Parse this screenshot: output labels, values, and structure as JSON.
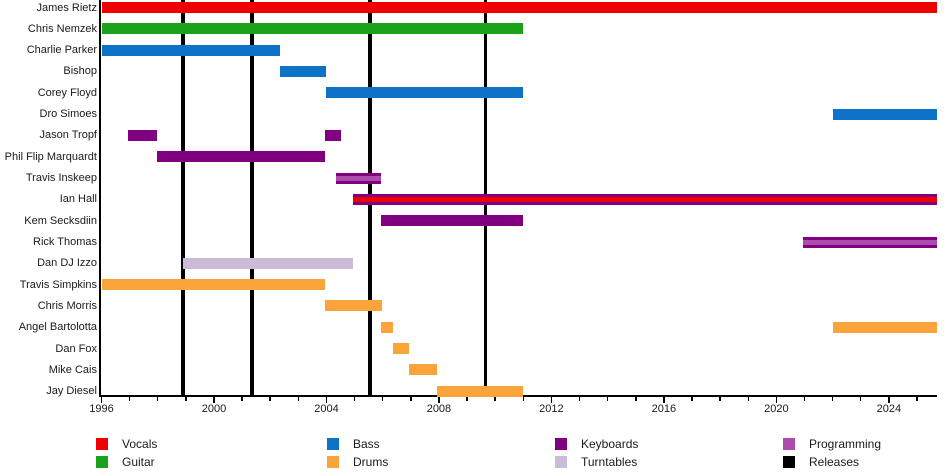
{
  "chart_data": {
    "type": "timeline",
    "title": "",
    "x_axis": {
      "start": 1996,
      "end": 2025.7,
      "major_ticks": [
        1996,
        2000,
        2004,
        2008,
        2012,
        2016,
        2020,
        2024
      ],
      "minor_tick_interval": 1,
      "grid": false
    },
    "legend_position": "bottom",
    "legend": [
      {
        "id": "vocals",
        "label": "Vocals",
        "color": "#ee0000"
      },
      {
        "id": "guitar",
        "label": "Guitar",
        "color": "#1aa31a"
      },
      {
        "id": "bass",
        "label": "Bass",
        "color": "#0d72c8"
      },
      {
        "id": "drums",
        "label": "Drums",
        "color": "#faa43a"
      },
      {
        "id": "keyboards",
        "label": "Keyboards",
        "color": "#800080"
      },
      {
        "id": "turntables",
        "label": "Turntables",
        "color": "#ccbbd6"
      },
      {
        "id": "programming",
        "label": "Programming",
        "color": "#ad4cad"
      },
      {
        "id": "releases",
        "label": "Releases",
        "color": "#000000"
      }
    ],
    "members": [
      {
        "name": "James Rietz",
        "bars": [
          {
            "start": 1996,
            "end": 2025.7,
            "role": "vocals"
          }
        ]
      },
      {
        "name": "Chris Nemzek",
        "bars": [
          {
            "start": 1996,
            "end": 2011,
            "role": "guitar"
          }
        ]
      },
      {
        "name": "Charlie Parker",
        "bars": [
          {
            "start": 1996,
            "end": 2002.35,
            "role": "bass"
          }
        ]
      },
      {
        "name": "Bishop",
        "bars": [
          {
            "start": 2002.35,
            "end": 2004,
            "role": "bass"
          }
        ]
      },
      {
        "name": "Corey Floyd",
        "bars": [
          {
            "start": 2004,
            "end": 2011,
            "role": "bass"
          }
        ]
      },
      {
        "name": "Dro Simoes",
        "bars": [
          {
            "start": 2022,
            "end": 2025.7,
            "role": "bass"
          }
        ]
      },
      {
        "name": "Jason Tropf",
        "bars": [
          {
            "start": 1996.95,
            "end": 1997.97,
            "role": "keyboards"
          },
          {
            "start": 2003.95,
            "end": 2004.5,
            "role": "keyboards"
          }
        ]
      },
      {
        "name": "Phil Flip Marquardt",
        "bars": [
          {
            "start": 1997.97,
            "end": 2003.95,
            "role": "keyboards"
          }
        ]
      },
      {
        "name": "Travis Inskeep",
        "bars": [
          {
            "start": 2004.35,
            "end": 2005.95,
            "role": "keyboards",
            "overlay": "programming"
          }
        ]
      },
      {
        "name": "Ian Hall",
        "bars": [
          {
            "start": 2004.95,
            "end": 2025.7,
            "role": "keyboards",
            "overlay": "vocals"
          }
        ]
      },
      {
        "name": "Kem Secksdiin",
        "bars": [
          {
            "start": 2005.95,
            "end": 2011,
            "role": "keyboards"
          }
        ]
      },
      {
        "name": "Rick Thomas",
        "bars": [
          {
            "start": 2020.95,
            "end": 2025.7,
            "role": "keyboards",
            "overlay": "programming"
          }
        ]
      },
      {
        "name": "Dan DJ Izzo",
        "bars": [
          {
            "start": 1998.9,
            "end": 2004.95,
            "role": "turntables"
          }
        ]
      },
      {
        "name": "Travis Simpkins",
        "bars": [
          {
            "start": 1996,
            "end": 2003.95,
            "role": "drums"
          }
        ]
      },
      {
        "name": "Chris Morris",
        "bars": [
          {
            "start": 2003.95,
            "end": 2005.97,
            "role": "drums"
          }
        ]
      },
      {
        "name": "Angel Bartolotta",
        "bars": [
          {
            "start": 2005.95,
            "end": 2006.35,
            "role": "drums"
          },
          {
            "start": 2022,
            "end": 2025.7,
            "role": "drums"
          }
        ]
      },
      {
        "name": "Dan Fox",
        "bars": [
          {
            "start": 2006.35,
            "end": 2006.95,
            "role": "drums"
          }
        ]
      },
      {
        "name": "Mike Cais",
        "bars": [
          {
            "start": 2006.95,
            "end": 2007.93,
            "role": "drums"
          }
        ]
      },
      {
        "name": "Jay Diesel",
        "bars": [
          {
            "start": 2007.93,
            "end": 2011,
            "role": "drums"
          }
        ]
      }
    ],
    "releases": [
      1998.9,
      2001.35,
      2005.55,
      2009.65
    ]
  }
}
